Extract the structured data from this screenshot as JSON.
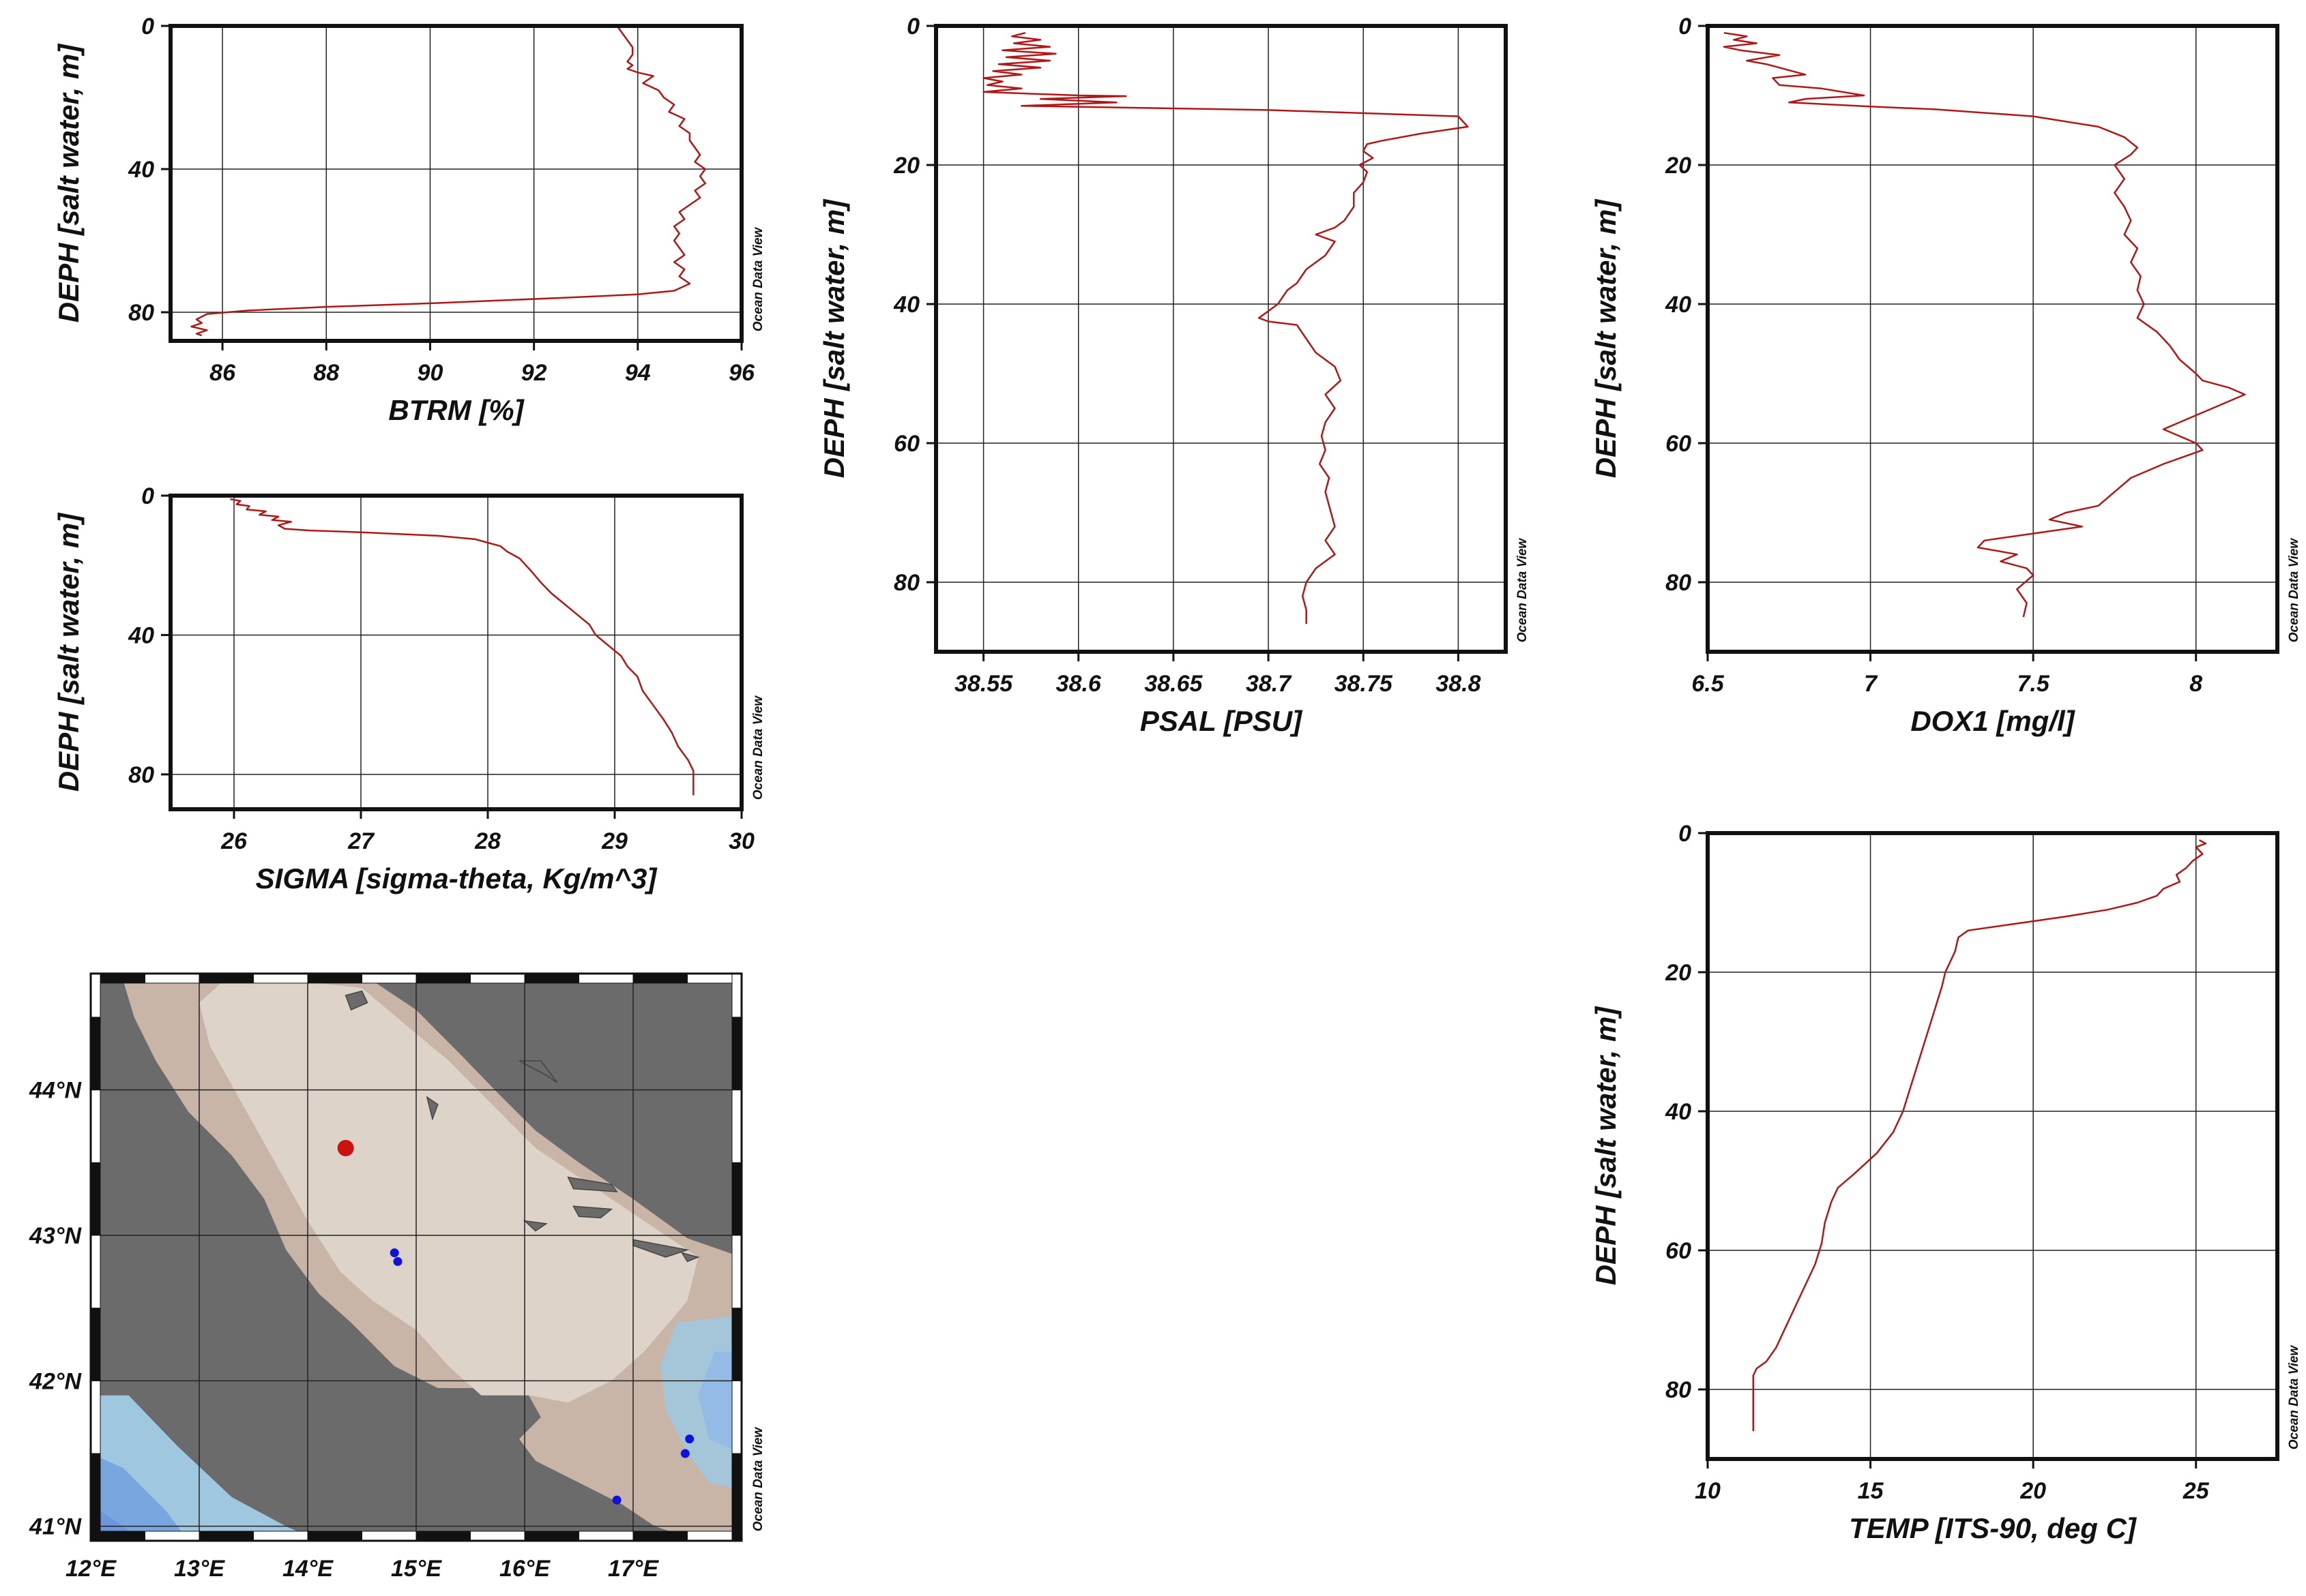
{
  "watermark": "Ocean Data View",
  "chart_data": [
    {
      "id": "btrm",
      "type": "line",
      "xlabel": "BTRM [%]",
      "ylabel": "DEPH [salt water, m]",
      "xlim": [
        85,
        96
      ],
      "ylim": [
        88,
        0
      ],
      "xticks": [
        86,
        88,
        90,
        92,
        94,
        96
      ],
      "yticks": [
        0,
        40,
        80
      ],
      "grid": true,
      "points": [
        [
          93.6,
          0
        ],
        [
          93.7,
          2
        ],
        [
          93.8,
          4
        ],
        [
          93.9,
          6
        ],
        [
          93.9,
          8
        ],
        [
          93.8,
          10
        ],
        [
          93.9,
          11
        ],
        [
          93.8,
          12
        ],
        [
          94.0,
          13
        ],
        [
          94.3,
          14
        ],
        [
          94.1,
          16
        ],
        [
          94.4,
          18
        ],
        [
          94.5,
          20
        ],
        [
          94.7,
          22
        ],
        [
          94.6,
          24
        ],
        [
          94.9,
          26
        ],
        [
          94.8,
          28
        ],
        [
          95.0,
          30
        ],
        [
          95.0,
          32
        ],
        [
          95.1,
          34
        ],
        [
          95.2,
          36
        ],
        [
          95.1,
          38
        ],
        [
          95.3,
          40
        ],
        [
          95.2,
          42
        ],
        [
          95.3,
          44
        ],
        [
          95.1,
          46
        ],
        [
          95.2,
          48
        ],
        [
          95.0,
          50
        ],
        [
          94.8,
          52
        ],
        [
          94.9,
          54
        ],
        [
          94.7,
          56
        ],
        [
          94.8,
          58
        ],
        [
          94.7,
          60
        ],
        [
          94.8,
          62
        ],
        [
          94.9,
          64
        ],
        [
          94.7,
          66
        ],
        [
          94.9,
          68
        ],
        [
          94.8,
          70
        ],
        [
          95.0,
          72
        ],
        [
          94.7,
          74
        ],
        [
          94.0,
          75
        ],
        [
          92.5,
          76
        ],
        [
          90.0,
          77.5
        ],
        [
          88.0,
          78.5
        ],
        [
          86.5,
          79.5
        ],
        [
          85.7,
          80.5
        ],
        [
          85.5,
          82
        ],
        [
          85.6,
          83
        ],
        [
          85.4,
          84
        ],
        [
          85.7,
          85
        ],
        [
          85.5,
          86
        ],
        [
          85.6,
          86.5
        ]
      ]
    },
    {
      "id": "sigma",
      "type": "line",
      "xlabel": "SIGMA [sigma-theta, Kg/m^3]",
      "ylabel": "DEPH [salt water, m]",
      "xlim": [
        25.5,
        30
      ],
      "ylim": [
        90,
        0
      ],
      "xticks": [
        26,
        27,
        28,
        29,
        30
      ],
      "yticks": [
        0,
        40,
        80
      ],
      "grid": true,
      "points": [
        [
          25.97,
          1
        ],
        [
          26.05,
          1.5
        ],
        [
          26.02,
          2.5
        ],
        [
          26.12,
          3
        ],
        [
          26.1,
          4
        ],
        [
          26.25,
          4.5
        ],
        [
          26.2,
          5.5
        ],
        [
          26.35,
          6
        ],
        [
          26.3,
          7
        ],
        [
          26.45,
          7.5
        ],
        [
          26.35,
          8.5
        ],
        [
          26.4,
          9.5
        ],
        [
          26.6,
          10
        ],
        [
          27.0,
          10.5
        ],
        [
          27.6,
          11.5
        ],
        [
          27.9,
          12.5
        ],
        [
          28.0,
          13.5
        ],
        [
          28.1,
          14.5
        ],
        [
          28.15,
          16
        ],
        [
          28.25,
          18
        ],
        [
          28.3,
          20
        ],
        [
          28.35,
          22
        ],
        [
          28.42,
          25
        ],
        [
          28.5,
          28
        ],
        [
          28.6,
          31
        ],
        [
          28.7,
          34
        ],
        [
          28.8,
          37
        ],
        [
          28.85,
          40
        ],
        [
          28.95,
          43
        ],
        [
          29.05,
          46
        ],
        [
          29.1,
          49
        ],
        [
          29.18,
          52
        ],
        [
          29.22,
          56
        ],
        [
          29.3,
          60
        ],
        [
          29.38,
          64
        ],
        [
          29.45,
          68
        ],
        [
          29.5,
          72
        ],
        [
          29.58,
          76
        ],
        [
          29.62,
          79
        ],
        [
          29.62,
          83
        ],
        [
          29.62,
          86
        ]
      ]
    },
    {
      "id": "psal",
      "type": "line",
      "xlabel": "PSAL [PSU]",
      "ylabel": "DEPH [salt water, m]",
      "xlim": [
        38.525,
        38.825
      ],
      "ylim": [
        90,
        0
      ],
      "xticks": [
        38.55,
        38.6,
        38.65,
        38.7,
        38.75,
        38.8
      ],
      "yticks": [
        0,
        20,
        40,
        60,
        80
      ],
      "grid": true,
      "points": [
        [
          38.572,
          1
        ],
        [
          38.565,
          1.5
        ],
        [
          38.58,
          2
        ],
        [
          38.566,
          2.5
        ],
        [
          38.585,
          3
        ],
        [
          38.56,
          3.5
        ],
        [
          38.588,
          4
        ],
        [
          38.562,
          4.5
        ],
        [
          38.585,
          5
        ],
        [
          38.558,
          5.5
        ],
        [
          38.58,
          6
        ],
        [
          38.555,
          6.5
        ],
        [
          38.57,
          7
        ],
        [
          38.55,
          7.5
        ],
        [
          38.56,
          8
        ],
        [
          38.552,
          8.5
        ],
        [
          38.57,
          9
        ],
        [
          38.55,
          9.5
        ],
        [
          38.6,
          10
        ],
        [
          38.625,
          10.1
        ],
        [
          38.58,
          10.5
        ],
        [
          38.62,
          11
        ],
        [
          38.57,
          11.5
        ],
        [
          38.7,
          12.1
        ],
        [
          38.8,
          13
        ],
        [
          38.805,
          14.5
        ],
        [
          38.78,
          15.5
        ],
        [
          38.76,
          16.5
        ],
        [
          38.752,
          17
        ],
        [
          38.75,
          18
        ],
        [
          38.755,
          19
        ],
        [
          38.748,
          20
        ],
        [
          38.752,
          21
        ],
        [
          38.75,
          22.5
        ],
        [
          38.745,
          24
        ],
        [
          38.745,
          26
        ],
        [
          38.74,
          28
        ],
        [
          38.735,
          29
        ],
        [
          38.725,
          30
        ],
        [
          38.735,
          31
        ],
        [
          38.73,
          33
        ],
        [
          38.72,
          35
        ],
        [
          38.715,
          37
        ],
        [
          38.71,
          38
        ],
        [
          38.705,
          40
        ],
        [
          38.7,
          41
        ],
        [
          38.695,
          42
        ],
        [
          38.7,
          42.5
        ],
        [
          38.715,
          43
        ],
        [
          38.72,
          45
        ],
        [
          38.725,
          47
        ],
        [
          38.735,
          49
        ],
        [
          38.738,
          51
        ],
        [
          38.73,
          53
        ],
        [
          38.735,
          55
        ],
        [
          38.73,
          57
        ],
        [
          38.728,
          59
        ],
        [
          38.73,
          61
        ],
        [
          38.727,
          63
        ],
        [
          38.732,
          65
        ],
        [
          38.73,
          67
        ],
        [
          38.733,
          70
        ],
        [
          38.735,
          72
        ],
        [
          38.73,
          74
        ],
        [
          38.735,
          76
        ],
        [
          38.73,
          77
        ],
        [
          38.725,
          78
        ],
        [
          38.72,
          80
        ],
        [
          38.718,
          82
        ],
        [
          38.72,
          84
        ],
        [
          38.72,
          86
        ]
      ]
    },
    {
      "id": "dox1",
      "type": "line",
      "xlabel": "DOX1 [mg/l]",
      "ylabel": "DEPH [salt water, m]",
      "xlim": [
        6.5,
        8.25
      ],
      "ylim": [
        90,
        0
      ],
      "xticks": [
        6.5,
        7,
        7.5,
        8
      ],
      "yticks": [
        0,
        20,
        40,
        60,
        80
      ],
      "grid": true,
      "points": [
        [
          6.55,
          1
        ],
        [
          6.62,
          1.5
        ],
        [
          6.58,
          2
        ],
        [
          6.65,
          2.5
        ],
        [
          6.55,
          3
        ],
        [
          6.6,
          3.5
        ],
        [
          6.72,
          4.2
        ],
        [
          6.62,
          5
        ],
        [
          6.68,
          5.5
        ],
        [
          6.8,
          7
        ],
        [
          6.7,
          7.5
        ],
        [
          6.72,
          8.5
        ],
        [
          6.85,
          9
        ],
        [
          6.98,
          10
        ],
        [
          6.8,
          10.5
        ],
        [
          6.75,
          11
        ],
        [
          7.0,
          11.6
        ],
        [
          7.2,
          12
        ],
        [
          7.5,
          13
        ],
        [
          7.7,
          14.5
        ],
        [
          7.78,
          16
        ],
        [
          7.82,
          17.5
        ],
        [
          7.8,
          18.5
        ],
        [
          7.75,
          20
        ],
        [
          7.78,
          22
        ],
        [
          7.75,
          24
        ],
        [
          7.78,
          26
        ],
        [
          7.8,
          28
        ],
        [
          7.78,
          30
        ],
        [
          7.82,
          32
        ],
        [
          7.8,
          34
        ],
        [
          7.83,
          36
        ],
        [
          7.82,
          38
        ],
        [
          7.84,
          40
        ],
        [
          7.82,
          42
        ],
        [
          7.88,
          44
        ],
        [
          7.92,
          46
        ],
        [
          7.95,
          48
        ],
        [
          8.0,
          50
        ],
        [
          8.02,
          51
        ],
        [
          8.1,
          52
        ],
        [
          8.15,
          53
        ],
        [
          8.05,
          55
        ],
        [
          7.95,
          57
        ],
        [
          7.9,
          58
        ],
        [
          8.0,
          60
        ],
        [
          8.02,
          61
        ],
        [
          7.9,
          63
        ],
        [
          7.8,
          65
        ],
        [
          7.75,
          67
        ],
        [
          7.7,
          69
        ],
        [
          7.6,
          70
        ],
        [
          7.55,
          71
        ],
        [
          7.65,
          72
        ],
        [
          7.5,
          73
        ],
        [
          7.35,
          74
        ],
        [
          7.33,
          75
        ],
        [
          7.45,
          76
        ],
        [
          7.4,
          77
        ],
        [
          7.48,
          78
        ],
        [
          7.5,
          79
        ],
        [
          7.45,
          81
        ],
        [
          7.48,
          83
        ],
        [
          7.47,
          85
        ]
      ]
    },
    {
      "id": "temp",
      "type": "line",
      "xlabel": "TEMP [ITS-90, deg C]",
      "ylabel": "DEPH [salt water, m]",
      "xlim": [
        10,
        27.5
      ],
      "ylim": [
        90,
        0
      ],
      "xticks": [
        10,
        15,
        20,
        25
      ],
      "yticks": [
        0,
        20,
        40,
        60,
        80
      ],
      "grid": true,
      "points": [
        [
          25.1,
          1
        ],
        [
          25.3,
          1.5
        ],
        [
          25.0,
          2
        ],
        [
          25.2,
          3
        ],
        [
          24.9,
          4
        ],
        [
          24.7,
          5
        ],
        [
          24.4,
          6
        ],
        [
          24.5,
          7
        ],
        [
          24.0,
          8
        ],
        [
          23.8,
          9
        ],
        [
          23.2,
          10
        ],
        [
          22.3,
          11
        ],
        [
          21.0,
          12
        ],
        [
          19.5,
          13
        ],
        [
          18.0,
          14
        ],
        [
          17.7,
          15
        ],
        [
          17.6,
          17
        ],
        [
          17.5,
          18
        ],
        [
          17.3,
          20
        ],
        [
          17.2,
          22
        ],
        [
          17.0,
          25
        ],
        [
          16.8,
          28
        ],
        [
          16.6,
          31
        ],
        [
          16.4,
          34
        ],
        [
          16.2,
          37
        ],
        [
          16.0,
          40
        ],
        [
          15.7,
          43
        ],
        [
          15.2,
          46
        ],
        [
          14.5,
          49
        ],
        [
          14.0,
          51
        ],
        [
          13.8,
          53
        ],
        [
          13.6,
          56
        ],
        [
          13.5,
          59
        ],
        [
          13.3,
          62
        ],
        [
          13.0,
          65
        ],
        [
          12.7,
          68
        ],
        [
          12.4,
          71
        ],
        [
          12.1,
          74
        ],
        [
          11.8,
          76
        ],
        [
          11.5,
          77
        ],
        [
          11.4,
          78
        ],
        [
          11.4,
          80
        ],
        [
          11.4,
          83
        ],
        [
          11.4,
          86
        ]
      ]
    },
    {
      "id": "map",
      "type": "map",
      "xticks": [
        "12°E",
        "13°E",
        "14°E",
        "15°E",
        "16°E",
        "17°E"
      ],
      "yticks": [
        "41°N",
        "42°N",
        "43°N",
        "44°N"
      ],
      "lon_range": [
        12,
        18
      ],
      "lat_range": [
        40.9,
        44.8
      ],
      "colors": {
        "land": "#6b6b6b",
        "sea_shallow": "#ddd3c8",
        "sea_mid": "#c8b5a8",
        "sea_deep": "#9fc8e0",
        "sea_deepest": "#6e96de",
        "selected_station": "#cc1111",
        "stations": "#1111dd"
      },
      "selected_station": [
        14.35,
        43.6
      ],
      "stations": [
        [
          14.8,
          42.88
        ],
        [
          14.83,
          42.82
        ],
        [
          17.52,
          41.6
        ],
        [
          17.48,
          41.5
        ],
        [
          16.85,
          41.18
        ]
      ]
    }
  ]
}
